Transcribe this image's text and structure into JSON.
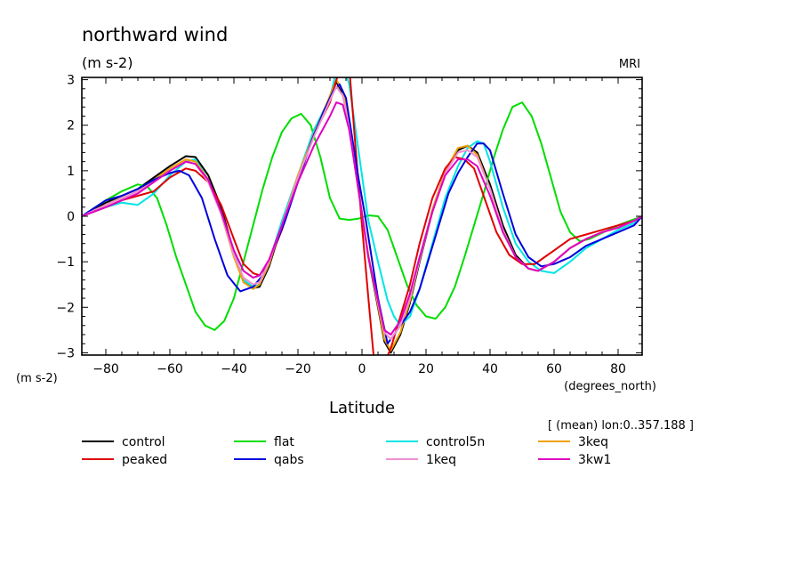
{
  "chart_data": {
    "type": "line",
    "title": "northward wind",
    "units": "(m s-2)",
    "model_label": "MRI",
    "xlabel": "Latitude",
    "x_units": "(degrees_north)",
    "ylabel": "(m s-2)",
    "subtitle": "[ (mean) lon:0..357.188 ]",
    "xlim": [
      -87.5,
      87.5
    ],
    "ylim": [
      -3.05,
      3.05
    ],
    "xticks": [
      -80,
      -60,
      -40,
      -20,
      0,
      20,
      40,
      60,
      80
    ],
    "xtick_labels": [
      "−80",
      "−60",
      "−40",
      "−20",
      "0",
      "20",
      "40",
      "60",
      "80"
    ],
    "yticks": [
      -3,
      -2,
      -1,
      0,
      1,
      2,
      3
    ],
    "ytick_labels": [
      "−3",
      "−2",
      "−1",
      "0",
      "1",
      "2",
      "3"
    ],
    "grid": false,
    "legend_position": "bottom",
    "series": [
      {
        "name": "control",
        "color": "#000000",
        "x": [
          -87.5,
          -80,
          -75,
          -70,
          -65,
          -60,
          -55,
          -52,
          -48,
          -44,
          -40,
          -37,
          -34,
          -32,
          -29,
          -25,
          -20,
          -15,
          -10,
          -8,
          -6,
          -4,
          -2,
          0,
          2,
          5,
          7,
          9,
          12,
          15,
          18,
          22,
          26,
          30,
          33,
          36,
          40,
          44,
          48,
          52,
          55,
          60,
          65,
          70,
          75,
          80,
          85,
          87.5
        ],
        "y": [
          0,
          0.3,
          0.45,
          0.6,
          0.85,
          1.1,
          1.32,
          1.3,
          0.9,
          0.2,
          -0.8,
          -1.45,
          -1.58,
          -1.55,
          -1.1,
          -0.2,
          0.85,
          1.8,
          2.6,
          2.95,
          2.7,
          2.0,
          1.0,
          0.05,
          -0.9,
          -2.0,
          -2.75,
          -3.0,
          -2.6,
          -1.9,
          -1.0,
          0.1,
          0.95,
          1.45,
          1.55,
          1.4,
          0.7,
          -0.2,
          -0.85,
          -1.15,
          -1.2,
          -1.0,
          -0.7,
          -0.5,
          -0.35,
          -0.25,
          -0.1,
          0
        ]
      },
      {
        "name": "flat",
        "color": "#00dd00",
        "x": [
          -87.5,
          -80,
          -75,
          -70,
          -67,
          -64,
          -61,
          -58,
          -55,
          -52,
          -49,
          -46,
          -43,
          -40,
          -37,
          -34,
          -31,
          -28,
          -25,
          -22,
          -19,
          -16,
          -13,
          -10,
          -7,
          -4,
          -1,
          2,
          5,
          8,
          11,
          14,
          17,
          20,
          23,
          26,
          29,
          32,
          35,
          38,
          41,
          44,
          47,
          50,
          53,
          56,
          59,
          62,
          65,
          68,
          71,
          74,
          77,
          80,
          83,
          87.5
        ],
        "y": [
          0,
          0.35,
          0.55,
          0.7,
          0.65,
          0.4,
          -0.2,
          -0.9,
          -1.5,
          -2.1,
          -2.4,
          -2.5,
          -2.3,
          -1.8,
          -1.0,
          -0.2,
          0.6,
          1.3,
          1.85,
          2.15,
          2.25,
          2.0,
          1.3,
          0.4,
          -0.05,
          -0.08,
          -0.05,
          0.02,
          0.0,
          -0.3,
          -0.9,
          -1.5,
          -1.95,
          -2.2,
          -2.25,
          -2.0,
          -1.55,
          -0.9,
          -0.2,
          0.5,
          1.25,
          1.9,
          2.4,
          2.5,
          2.2,
          1.6,
          0.85,
          0.1,
          -0.35,
          -0.55,
          -0.5,
          -0.4,
          -0.3,
          -0.2,
          -0.12,
          0
        ]
      },
      {
        "name": "control5n",
        "color": "#00e5e5",
        "x": [
          -87.5,
          -80,
          -75,
          -70,
          -65,
          -60,
          -55,
          -52,
          -48,
          -44,
          -40,
          -37,
          -34,
          -32,
          -29,
          -25,
          -20,
          -15,
          -10,
          -8,
          -6,
          -4,
          -2,
          0,
          2,
          5,
          8,
          10,
          12,
          15,
          18,
          22,
          26,
          30,
          33,
          36,
          38,
          40,
          44,
          48,
          52,
          56,
          60,
          65,
          70,
          75,
          80,
          85,
          87.5
        ],
        "y": [
          0,
          0.2,
          0.3,
          0.25,
          0.5,
          0.9,
          1.2,
          1.25,
          0.8,
          0.1,
          -0.8,
          -1.4,
          -1.55,
          -1.5,
          -1.0,
          -0.1,
          0.9,
          1.9,
          2.6,
          3.2,
          3.35,
          2.9,
          1.9,
          0.9,
          -0.1,
          -1.0,
          -1.85,
          -2.2,
          -2.4,
          -2.2,
          -1.6,
          -0.6,
          0.4,
          1.1,
          1.5,
          1.65,
          1.6,
          1.2,
          0.2,
          -0.6,
          -1.0,
          -1.2,
          -1.25,
          -1.0,
          -0.7,
          -0.5,
          -0.3,
          -0.15,
          0
        ]
      },
      {
        "name": "3keq",
        "color": "#f0a000",
        "x": [
          -87.5,
          -80,
          -75,
          -70,
          -65,
          -60,
          -55,
          -52,
          -48,
          -44,
          -40,
          -37,
          -34,
          -32,
          -29,
          -25,
          -20,
          -15,
          -10,
          -8,
          -6,
          -4,
          -2,
          0,
          2,
          5,
          7,
          9,
          12,
          15,
          18,
          22,
          26,
          30,
          33,
          36,
          40,
          44,
          48,
          52,
          55,
          60,
          65,
          70,
          75,
          80,
          85,
          87.5
        ],
        "y": [
          0,
          0.25,
          0.4,
          0.55,
          0.8,
          1.05,
          1.25,
          1.2,
          0.8,
          0.05,
          -0.9,
          -1.45,
          -1.6,
          -1.5,
          -1.05,
          -0.2,
          0.9,
          1.8,
          2.65,
          3.0,
          2.75,
          2.05,
          1.05,
          0.1,
          -0.85,
          -1.95,
          -2.7,
          -2.95,
          -2.55,
          -1.85,
          -0.95,
          0.15,
          1.0,
          1.5,
          1.55,
          1.35,
          0.6,
          -0.3,
          -0.9,
          -1.15,
          -1.2,
          -1.0,
          -0.7,
          -0.5,
          -0.35,
          -0.25,
          -0.1,
          0
        ]
      },
      {
        "name": "peaked",
        "color": "#e00000",
        "x": [
          -87.5,
          -80,
          -75,
          -70,
          -65,
          -60,
          -55,
          -52,
          -48,
          -44,
          -40,
          -37,
          -34,
          -32,
          -29,
          -25,
          -20,
          -15,
          -10,
          -8,
          -6,
          -4,
          -2,
          0,
          2,
          4,
          6,
          9,
          12,
          15,
          18,
          22,
          26,
          29,
          32,
          35,
          38,
          42,
          46,
          50,
          54,
          57,
          60,
          65,
          70,
          75,
          80,
          85,
          87.5
        ],
        "y": [
          0,
          0.2,
          0.35,
          0.45,
          0.55,
          0.85,
          1.05,
          1.0,
          0.75,
          0.25,
          -0.5,
          -1.05,
          -1.25,
          -1.3,
          -1.0,
          -0.3,
          0.8,
          1.8,
          2.5,
          3.0,
          3.35,
          3.3,
          1.5,
          -0.2,
          -1.8,
          -3.35,
          -3.4,
          -2.9,
          -2.2,
          -1.5,
          -0.6,
          0.4,
          1.05,
          1.3,
          1.25,
          1.05,
          0.45,
          -0.35,
          -0.85,
          -1.05,
          -1.05,
          -0.9,
          -0.75,
          -0.5,
          -0.4,
          -0.3,
          -0.2,
          -0.1,
          0
        ]
      },
      {
        "name": "qabs",
        "color": "#0000dd",
        "x": [
          -87.5,
          -80,
          -75,
          -70,
          -65,
          -60,
          -57,
          -54,
          -50,
          -46,
          -42,
          -38,
          -36,
          -34,
          -31,
          -28,
          -24,
          -20,
          -16,
          -12,
          -9,
          -7,
          -5,
          -3,
          -1,
          1,
          3,
          5,
          8,
          12,
          15,
          18,
          21,
          24,
          27,
          30,
          33,
          36,
          38,
          40,
          44,
          48,
          52,
          56,
          60,
          65,
          70,
          75,
          80,
          85,
          87.5
        ],
        "y": [
          0,
          0.35,
          0.45,
          0.6,
          0.8,
          0.95,
          1.0,
          0.9,
          0.4,
          -0.5,
          -1.3,
          -1.65,
          -1.6,
          -1.55,
          -1.3,
          -0.8,
          -0.1,
          0.75,
          1.6,
          2.3,
          2.75,
          2.9,
          2.6,
          1.7,
          0.8,
          0.0,
          -0.9,
          -1.8,
          -2.8,
          -2.4,
          -2.1,
          -1.6,
          -0.9,
          -0.2,
          0.5,
          0.95,
          1.3,
          1.6,
          1.6,
          1.45,
          0.5,
          -0.4,
          -0.9,
          -1.1,
          -1.05,
          -0.9,
          -0.65,
          -0.5,
          -0.35,
          -0.2,
          0
        ]
      },
      {
        "name": "1keq",
        "color": "#f090d0",
        "x": [
          -87.5,
          -80,
          -75,
          -70,
          -65,
          -60,
          -55,
          -52,
          -48,
          -44,
          -40,
          -37,
          -34,
          -32,
          -29,
          -25,
          -20,
          -15,
          -10,
          -8,
          -6,
          -4,
          -2,
          0,
          2,
          5,
          7,
          9,
          12,
          15,
          18,
          22,
          26,
          30,
          33,
          36,
          40,
          44,
          48,
          52,
          55,
          60,
          65,
          70,
          75,
          80,
          85,
          87.5
        ],
        "y": [
          0,
          0.25,
          0.4,
          0.55,
          0.75,
          1.0,
          1.2,
          1.15,
          0.75,
          0.05,
          -0.85,
          -1.35,
          -1.5,
          -1.45,
          -1.0,
          -0.2,
          0.85,
          1.75,
          2.55,
          2.85,
          2.65,
          1.95,
          1.0,
          0.05,
          -0.9,
          -1.9,
          -2.55,
          -2.7,
          -2.4,
          -1.8,
          -0.95,
          0.1,
          0.95,
          1.4,
          1.45,
          1.3,
          0.6,
          -0.3,
          -0.9,
          -1.15,
          -1.2,
          -1.0,
          -0.7,
          -0.5,
          -0.35,
          -0.25,
          -0.1,
          0
        ]
      },
      {
        "name": "3kw1",
        "color": "#e000c0",
        "x": [
          -87.5,
          -80,
          -75,
          -70,
          -65,
          -60,
          -55,
          -52,
          -48,
          -44,
          -40,
          -37,
          -34,
          -32,
          -29,
          -25,
          -20,
          -15,
          -10,
          -8,
          -6,
          -4,
          -2,
          0,
          2,
          5,
          7,
          9,
          12,
          15,
          18,
          22,
          26,
          30,
          33,
          36,
          40,
          44,
          48,
          52,
          55,
          60,
          65,
          70,
          75,
          80,
          85,
          87.5
        ],
        "y": [
          0,
          0.2,
          0.35,
          0.5,
          0.75,
          1.0,
          1.2,
          1.15,
          0.8,
          0.1,
          -0.75,
          -1.2,
          -1.35,
          -1.3,
          -0.95,
          -0.2,
          0.75,
          1.55,
          2.2,
          2.5,
          2.45,
          1.9,
          1.0,
          0.05,
          -0.9,
          -1.85,
          -2.5,
          -2.6,
          -2.3,
          -1.7,
          -0.9,
          0.1,
          0.9,
          1.25,
          1.25,
          1.1,
          0.45,
          -0.35,
          -0.9,
          -1.15,
          -1.2,
          -1.0,
          -0.7,
          -0.5,
          -0.35,
          -0.25,
          -0.1,
          0
        ]
      }
    ]
  }
}
